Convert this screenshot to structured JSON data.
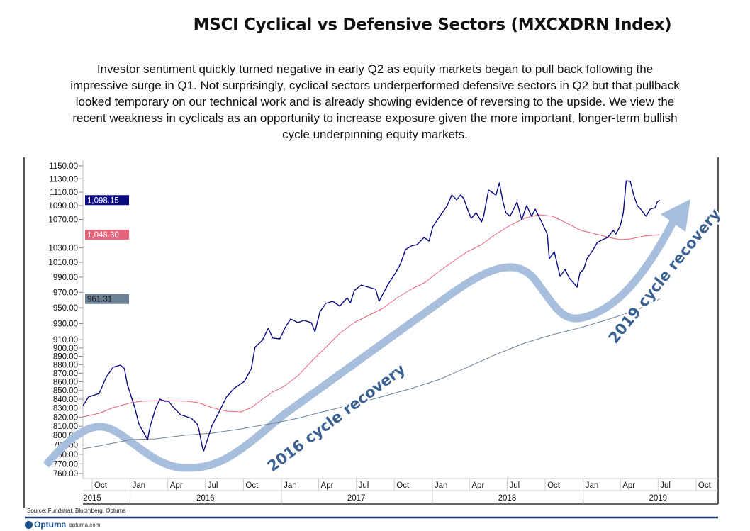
{
  "title": "MSCI Cyclical vs Defensive Sectors (MXCXDRN Index)",
  "description_lines": [
    "Investor sentiment quickly turned negative in early Q2 as equity markets began to pull back following the",
    "impressive surge in Q1. Not surprisingly, cyclical sectors underperformed defensive sectors in Q2 but that pullback",
    "looked temporary on our technical work and is already showing evidence of reversing to the upside. We view the",
    "recent weakness in cyclicals as an opportunity to increase exposure given the more important, longer-term bullish",
    "cycle underpinning equity markets."
  ],
  "source": "Source: Fundstrat, Bloomberg, Optuma",
  "brand": {
    "name": "Optuma",
    "url": "optuma.com"
  },
  "chart_data": {
    "type": "line",
    "y_scale": "log",
    "ylim": [
      755,
      1160
    ],
    "xlim": [
      "2015-09-01",
      "2019-10-31"
    ],
    "y_ticks": [
      "760.00",
      "770.00",
      "780.00",
      "790.00",
      "800.00",
      "810.00",
      "820.00",
      "830.00",
      "840.00",
      "850.00",
      "860.00",
      "870.00",
      "880.00",
      "890.00",
      "900.00",
      "910.00",
      "930.00",
      "950.00",
      "970.00",
      "990.00",
      "1010.00",
      "1030.00",
      "1070.00",
      "1090.00",
      "1110.00",
      "1130.00",
      "1150.00"
    ],
    "x_month_ticks": [
      {
        "date": "2015-10-01",
        "label": "Oct"
      },
      {
        "date": "2016-01-01",
        "label": "Jan"
      },
      {
        "date": "2016-04-01",
        "label": "Apr"
      },
      {
        "date": "2016-07-01",
        "label": "Jul"
      },
      {
        "date": "2016-10-01",
        "label": "Oct"
      },
      {
        "date": "2017-01-01",
        "label": "Jan"
      },
      {
        "date": "2017-04-01",
        "label": "Apr"
      },
      {
        "date": "2017-07-01",
        "label": "Jul"
      },
      {
        "date": "2017-10-01",
        "label": "Oct"
      },
      {
        "date": "2018-01-01",
        "label": "Jan"
      },
      {
        "date": "2018-04-01",
        "label": "Apr"
      },
      {
        "date": "2018-07-01",
        "label": "Jul"
      },
      {
        "date": "2018-10-01",
        "label": "Oct"
      },
      {
        "date": "2019-01-01",
        "label": "Jan"
      },
      {
        "date": "2019-04-01",
        "label": "Apr"
      },
      {
        "date": "2019-07-01",
        "label": "Jul"
      },
      {
        "date": "2019-10-01",
        "label": "Oct"
      }
    ],
    "x_year_labels": [
      {
        "label": "2015",
        "center": "2015-10-01"
      },
      {
        "label": "2016",
        "center": "2016-07-01"
      },
      {
        "label": "2017",
        "center": "2017-07-01"
      },
      {
        "label": "2018",
        "center": "2018-07-01"
      },
      {
        "label": "2019",
        "center": "2019-07-01"
      }
    ],
    "year_dividers": [
      "2016-01-01",
      "2017-01-01",
      "2018-01-01",
      "2019-01-01"
    ],
    "series": [
      {
        "key": "price",
        "color": "#0a0a84",
        "last_label": "1,098.15",
        "points": [
          [
            "2015-09-09",
            832.9
          ],
          [
            "2015-09-22",
            842.5
          ],
          [
            "2015-10-18",
            846.5
          ],
          [
            "2015-11-04",
            865.3
          ],
          [
            "2015-11-21",
            877
          ],
          [
            "2015-12-08",
            879.5
          ],
          [
            "2015-12-18",
            875.3
          ],
          [
            "2015-12-25",
            857.1
          ],
          [
            "2016-01-12",
            830.5
          ],
          [
            "2016-01-22",
            812.5
          ],
          [
            "2016-02-12",
            795.6
          ],
          [
            "2016-02-19",
            810.9
          ],
          [
            "2016-03-03",
            830.5
          ],
          [
            "2016-03-13",
            840.1
          ],
          [
            "2016-03-25",
            837.7
          ],
          [
            "2016-04-03",
            837.7
          ],
          [
            "2016-04-15",
            830.5
          ],
          [
            "2016-05-02",
            822.6
          ],
          [
            "2016-05-28",
            818.7
          ],
          [
            "2016-06-11",
            812.5
          ],
          [
            "2016-06-15",
            807.1
          ],
          [
            "2016-06-24",
            786.6
          ],
          [
            "2016-06-27",
            783.6
          ],
          [
            "2016-07-17",
            810.9
          ],
          [
            "2016-08-04",
            826.6
          ],
          [
            "2016-08-21",
            842.5
          ],
          [
            "2016-09-08",
            852.2
          ],
          [
            "2016-10-03",
            860.3
          ],
          [
            "2016-10-20",
            875.3
          ],
          [
            "2016-10-29",
            900.7
          ],
          [
            "2016-11-16",
            909.4
          ],
          [
            "2016-11-30",
            924.2
          ],
          [
            "2016-12-11",
            912
          ],
          [
            "2016-12-28",
            911.1
          ],
          [
            "2017-01-10",
            925.1
          ],
          [
            "2017-01-23",
            935.7
          ],
          [
            "2017-02-10",
            931.3
          ],
          [
            "2017-02-24",
            934
          ],
          [
            "2017-03-14",
            931.3
          ],
          [
            "2017-03-23",
            919.8
          ],
          [
            "2017-04-04",
            944.8
          ],
          [
            "2017-04-18",
            955.6
          ],
          [
            "2017-05-05",
            958.3
          ],
          [
            "2017-05-22",
            952
          ],
          [
            "2017-06-09",
            962.9
          ],
          [
            "2017-06-17",
            956.5
          ],
          [
            "2017-06-26",
            972.2
          ],
          [
            "2017-07-13",
            979.6
          ],
          [
            "2017-07-30",
            976.8
          ],
          [
            "2017-08-17",
            974
          ],
          [
            "2017-08-25",
            958.3
          ],
          [
            "2017-09-03",
            967.5
          ],
          [
            "2017-09-17",
            981.5
          ],
          [
            "2017-10-04",
            995.6
          ],
          [
            "2017-10-16",
            1008
          ],
          [
            "2017-10-28",
            1027.5
          ],
          [
            "2017-11-11",
            1032.4
          ],
          [
            "2017-11-25",
            1034.3
          ],
          [
            "2017-12-12",
            1044.3
          ],
          [
            "2017-12-24",
            1039.3
          ],
          [
            "2018-01-02",
            1059.3
          ],
          [
            "2018-01-19",
            1074.6
          ],
          [
            "2018-02-06",
            1090.1
          ],
          [
            "2018-02-17",
            1105.8
          ],
          [
            "2018-03-01",
            1098.5
          ],
          [
            "2018-03-10",
            1105.8
          ],
          [
            "2018-03-18",
            1100.5
          ],
          [
            "2018-03-27",
            1084.9
          ],
          [
            "2018-04-05",
            1071.5
          ],
          [
            "2018-04-17",
            1079.7
          ],
          [
            "2018-04-30",
            1066.4
          ],
          [
            "2018-05-05",
            1074.6
          ],
          [
            "2018-05-17",
            1113.2
          ],
          [
            "2018-06-04",
            1105.8
          ],
          [
            "2018-06-12",
            1123.9
          ],
          [
            "2018-06-21",
            1095.4
          ],
          [
            "2018-06-28",
            1079.7
          ],
          [
            "2018-07-08",
            1074.6
          ],
          [
            "2018-07-25",
            1095.4
          ],
          [
            "2018-08-05",
            1069.5
          ],
          [
            "2018-08-17",
            1090.1
          ],
          [
            "2018-08-29",
            1074.6
          ],
          [
            "2018-09-07",
            1084.9
          ],
          [
            "2018-09-24",
            1064.4
          ],
          [
            "2018-10-06",
            1049.3
          ],
          [
            "2018-10-11",
            1014.8
          ],
          [
            "2018-10-23",
            1024.6
          ],
          [
            "2018-11-06",
            990.9
          ],
          [
            "2018-11-18",
            1000.4
          ],
          [
            "2018-11-28",
            989
          ],
          [
            "2018-12-10",
            981.5
          ],
          [
            "2018-12-17",
            976.8
          ],
          [
            "2018-12-24",
            995.6
          ],
          [
            "2019-01-02",
            1000.4
          ],
          [
            "2019-01-10",
            1014.8
          ],
          [
            "2019-01-22",
            1024.6
          ],
          [
            "2019-02-04",
            1037.3
          ],
          [
            "2019-02-17",
            1041.3
          ],
          [
            "2019-03-01",
            1044.3
          ],
          [
            "2019-03-15",
            1054.3
          ],
          [
            "2019-03-21",
            1049.3
          ],
          [
            "2019-04-01",
            1061.4
          ],
          [
            "2019-04-08",
            1079.7
          ],
          [
            "2019-04-15",
            1127
          ],
          [
            "2019-04-25",
            1126
          ],
          [
            "2019-05-03",
            1105.8
          ],
          [
            "2019-05-12",
            1090.1
          ],
          [
            "2019-05-20",
            1084.9
          ],
          [
            "2019-06-02",
            1074.6
          ],
          [
            "2019-06-12",
            1084.9
          ],
          [
            "2019-06-24",
            1087
          ],
          [
            "2019-06-29",
            1095.4
          ],
          [
            "2019-07-05",
            1098.15
          ]
        ]
      },
      {
        "key": "ma_fast",
        "color": "#e8627a",
        "last_label": "1,048.30",
        "points": [
          [
            "2015-09-09",
            820.3
          ],
          [
            "2015-10-18",
            824.2
          ],
          [
            "2015-11-21",
            830.5
          ],
          [
            "2016-01-03",
            836.1
          ],
          [
            "2016-01-29",
            837.7
          ],
          [
            "2016-03-20",
            838.5
          ],
          [
            "2016-05-19",
            837.7
          ],
          [
            "2016-06-14",
            836.1
          ],
          [
            "2016-07-17",
            830.5
          ],
          [
            "2016-08-21",
            826.6
          ],
          [
            "2016-09-25",
            825.8
          ],
          [
            "2016-10-20",
            830.5
          ],
          [
            "2016-11-16",
            840.1
          ],
          [
            "2016-12-11",
            848.2
          ],
          [
            "2017-01-07",
            854.7
          ],
          [
            "2017-02-10",
            867
          ],
          [
            "2017-03-14",
            883.7
          ],
          [
            "2017-04-18",
            900.7
          ],
          [
            "2017-05-22",
            918
          ],
          [
            "2017-06-26",
            931.3
          ],
          [
            "2017-07-30",
            940.2
          ],
          [
            "2017-09-03",
            949.2
          ],
          [
            "2017-10-08",
            962.9
          ],
          [
            "2017-11-11",
            974
          ],
          [
            "2017-12-15",
            983.3
          ],
          [
            "2018-01-19",
            998.5
          ],
          [
            "2018-02-22",
            1011.9
          ],
          [
            "2018-03-27",
            1024.6
          ],
          [
            "2018-04-30",
            1034.3
          ],
          [
            "2018-06-04",
            1049.3
          ],
          [
            "2018-07-08",
            1061.4
          ],
          [
            "2018-08-12",
            1071.5
          ],
          [
            "2018-09-16",
            1076.7
          ],
          [
            "2018-10-19",
            1074.6
          ],
          [
            "2018-11-23",
            1064.4
          ],
          [
            "2018-12-27",
            1054.3
          ],
          [
            "2019-02-01",
            1049.3
          ],
          [
            "2019-03-05",
            1044.3
          ],
          [
            "2019-03-30",
            1041.3
          ],
          [
            "2019-04-25",
            1042.3
          ],
          [
            "2019-05-29",
            1046.3
          ],
          [
            "2019-07-05",
            1048.3
          ]
        ]
      },
      {
        "key": "ma_slow",
        "color": "#6d8194",
        "last_label": "961.31",
        "points": [
          [
            "2015-09-09",
            785.8
          ],
          [
            "2015-11-04",
            790.3
          ],
          [
            "2016-01-03",
            795.6
          ],
          [
            "2016-03-03",
            796.4
          ],
          [
            "2016-05-10",
            800.2
          ],
          [
            "2016-07-17",
            802.5
          ],
          [
            "2016-09-25",
            807.1
          ],
          [
            "2016-12-03",
            812.5
          ],
          [
            "2017-02-10",
            818.7
          ],
          [
            "2017-03-14",
            822.6
          ],
          [
            "2017-05-22",
            830.5
          ],
          [
            "2017-08-17",
            840.9
          ],
          [
            "2017-11-11",
            852.2
          ],
          [
            "2018-01-19",
            862.8
          ],
          [
            "2018-03-27",
            877
          ],
          [
            "2018-06-04",
            892.2
          ],
          [
            "2018-08-12",
            905.9
          ],
          [
            "2018-10-19",
            916.3
          ],
          [
            "2018-12-27",
            925.1
          ],
          [
            "2019-03-05",
            935.7
          ],
          [
            "2019-05-12",
            947.4
          ],
          [
            "2019-07-05",
            961.31
          ]
        ]
      }
    ],
    "annotations": [
      {
        "text": "2016 cycle recovery",
        "color": "#3a6191"
      },
      {
        "text": "2019 cycle recovery",
        "color": "#3a6191"
      }
    ],
    "cycle_curve_color": "#a7bfdd",
    "grid": false
  }
}
